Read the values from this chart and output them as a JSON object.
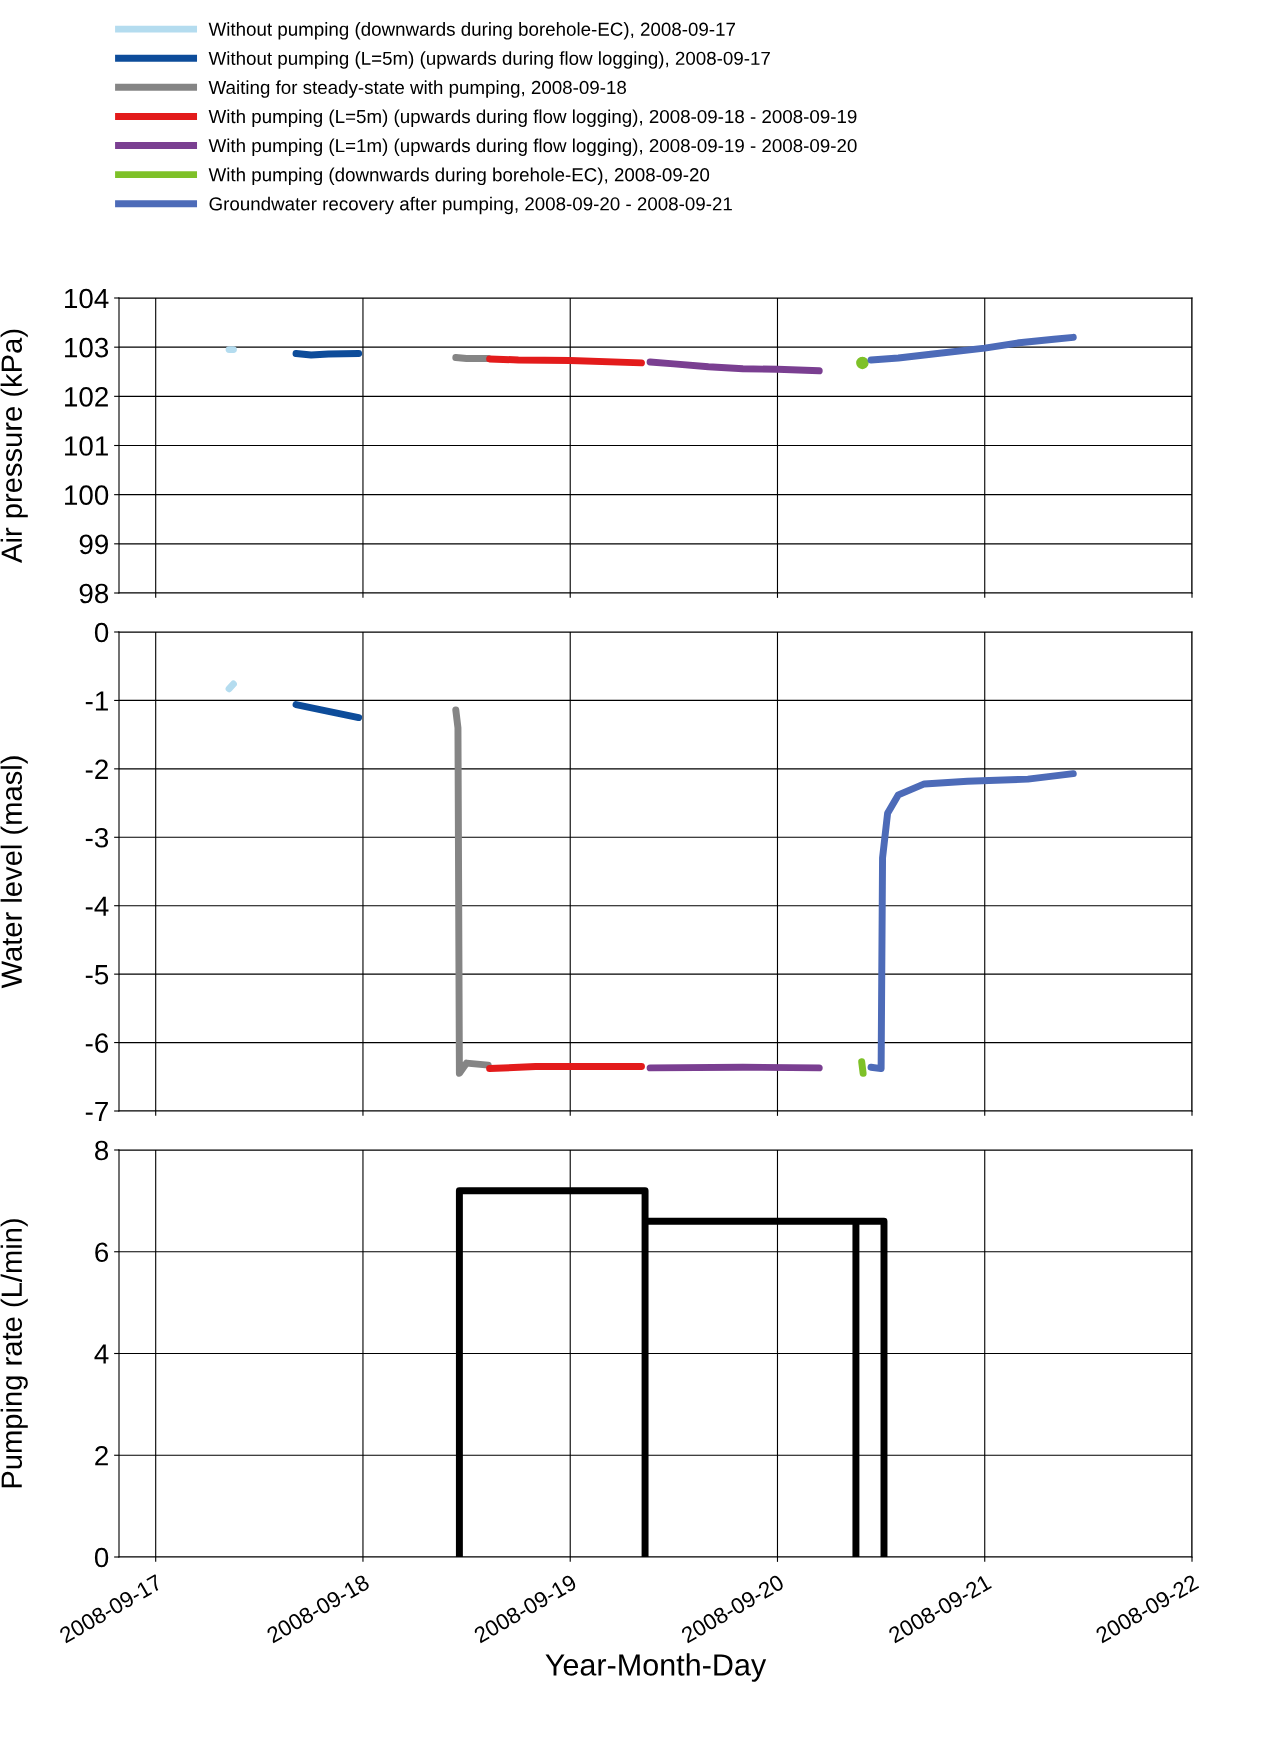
{
  "chart_data": [
    {
      "type": "line",
      "ylabel": "Air pressure (kPa)",
      "xlim": [
        "2008-09-16T19:45",
        "2008-09-22"
      ],
      "xticks": [
        "2008-09-17",
        "2008-09-18",
        "2008-09-19",
        "2008-09-20",
        "2008-09-21",
        "2008-09-22"
      ],
      "ylim": [
        98,
        104
      ],
      "yticks": [
        98,
        99,
        100,
        101,
        102,
        103,
        104
      ],
      "grid": true,
      "tick_labels": "y",
      "legend": "top",
      "marker": "none",
      "line_style": "solid",
      "series": [
        {
          "name": "Without pumping (downwards during borehole-EC), 2008-09-17",
          "color": "#b4dcef",
          "x": [
            "2008-09-17T08:30",
            "2008-09-17T09:00"
          ],
          "values": [
            102.95,
            102.95
          ]
        },
        {
          "name": "Without pumping (L=5m) (upwards during flow logging), 2008-09-17",
          "color": "#0d4c9a",
          "x": [
            "2008-09-17T16:15",
            "2008-09-17T18:00",
            "2008-09-17T20:00",
            "2008-09-17T23:30"
          ],
          "values": [
            102.87,
            102.84,
            102.86,
            102.87
          ]
        },
        {
          "name": "Waiting for steady-state with pumping, 2008-09-18",
          "color": "#858585",
          "x": [
            "2008-09-18T10:45",
            "2008-09-18T12:00",
            "2008-09-18T14:30"
          ],
          "values": [
            102.79,
            102.77,
            102.77
          ]
        },
        {
          "name": "With pumping (L=5m) (upwards during flow logging), 2008-09-18 - 2008-09-19",
          "color": "#e31b1b",
          "x": [
            "2008-09-18T14:40",
            "2008-09-18T18:00",
            "2008-09-19T00:00",
            "2008-09-19T08:15"
          ],
          "values": [
            102.76,
            102.74,
            102.73,
            102.68
          ]
        },
        {
          "name": "With pumping (L=1m) (upwards during flow logging), 2008-09-19 - 2008-09-20",
          "color": "#7a3f91",
          "x": [
            "2008-09-19T09:15",
            "2008-09-19T12:00",
            "2008-09-19T16:00",
            "2008-09-19T20:00",
            "2008-09-20T00:00",
            "2008-09-20T04:50"
          ],
          "values": [
            102.7,
            102.66,
            102.6,
            102.56,
            102.55,
            102.52
          ]
        },
        {
          "name": "With pumping (downwards during borehole-EC), 2008-09-20",
          "color": "#7ec128",
          "type": "scatter",
          "marker": "circle",
          "x": [
            "2008-09-20T09:50"
          ],
          "values": [
            102.68
          ]
        },
        {
          "name": "Groundwater recovery after pumping, 2008-09-20 - 2008-09-21",
          "color": "#4d6bb8",
          "x": [
            "2008-09-20T10:50",
            "2008-09-20T14:00",
            "2008-09-20T18:00",
            "2008-09-21T00:00",
            "2008-09-21T04:00",
            "2008-09-21T08:00",
            "2008-09-21T10:15"
          ],
          "values": [
            102.74,
            102.78,
            102.86,
            102.98,
            103.09,
            103.16,
            103.2
          ]
        }
      ]
    },
    {
      "type": "line",
      "ylabel": "Water level (masl)",
      "xlim": [
        "2008-09-16T19:45",
        "2008-09-22"
      ],
      "xticks": [
        "2008-09-17",
        "2008-09-18",
        "2008-09-19",
        "2008-09-20",
        "2008-09-21",
        "2008-09-22"
      ],
      "ylim": [
        -7,
        0
      ],
      "yticks": [
        -7,
        -6,
        -5,
        -4,
        -3,
        -2,
        -1,
        0
      ],
      "grid": true,
      "tick_labels": "y",
      "marker": "none",
      "line_style": "solid",
      "series": [
        {
          "color": "#b4dcef",
          "x": [
            "2008-09-17T08:30",
            "2008-09-17T09:00"
          ],
          "values": [
            -0.83,
            -0.76
          ]
        },
        {
          "color": "#0d4c9a",
          "x": [
            "2008-09-17T16:15",
            "2008-09-17T20:00",
            "2008-09-17T23:30"
          ],
          "values": [
            -1.06,
            -1.16,
            -1.25
          ]
        },
        {
          "color": "#858585",
          "x": [
            "2008-09-18T10:45",
            "2008-09-18T11:00",
            "2008-09-18T11:10",
            "2008-09-18T12:00",
            "2008-09-18T14:30"
          ],
          "values": [
            -1.14,
            -1.4,
            -6.45,
            -6.3,
            -6.33
          ]
        },
        {
          "color": "#e31b1b",
          "x": [
            "2008-09-18T14:40",
            "2008-09-18T20:00",
            "2008-09-19T08:15"
          ],
          "values": [
            -6.38,
            -6.35,
            -6.35
          ]
        },
        {
          "color": "#7a3f91",
          "x": [
            "2008-09-19T09:15",
            "2008-09-19T20:00",
            "2008-09-20T04:50"
          ],
          "values": [
            -6.37,
            -6.36,
            -6.37
          ]
        },
        {
          "color": "#7ec128",
          "x": [
            "2008-09-20T09:45",
            "2008-09-20T09:55"
          ],
          "values": [
            -6.28,
            -6.45
          ]
        },
        {
          "color": "#4d6bb8",
          "x": [
            "2008-09-20T10:50",
            "2008-09-20T12:00",
            "2008-09-20T12:10",
            "2008-09-20T12:45",
            "2008-09-20T14:00",
            "2008-09-20T17:00",
            "2008-09-20T22:00",
            "2008-09-21T05:00",
            "2008-09-21T10:15"
          ],
          "values": [
            -6.36,
            -6.38,
            -3.3,
            -2.65,
            -2.38,
            -2.22,
            -2.18,
            -2.15,
            -2.07
          ]
        }
      ]
    },
    {
      "type": "line",
      "ylabel": "Pumping rate (L/min)",
      "xlabel": "Year-Month-Day",
      "xlim": [
        "2008-09-16T19:45",
        "2008-09-22"
      ],
      "xticks": [
        "2008-09-17",
        "2008-09-18",
        "2008-09-19",
        "2008-09-20",
        "2008-09-21",
        "2008-09-22"
      ],
      "ylim": [
        0,
        8
      ],
      "yticks": [
        0,
        2,
        4,
        6,
        8
      ],
      "grid": true,
      "marker": "none",
      "line_style": "solid",
      "series": [
        {
          "color": "#000000",
          "x": [
            "2008-09-18T11:10",
            "2008-09-18T11:10",
            "2008-09-19T08:40",
            "2008-09-19T08:40",
            "2008-09-19T08:40",
            "2008-09-20T09:05",
            "2008-09-20T09:05",
            "2008-09-20T09:05",
            "2008-09-20T12:20",
            "2008-09-20T12:20"
          ],
          "values": [
            0,
            7.2,
            7.2,
            0,
            6.6,
            6.6,
            0,
            6.6,
            6.6,
            0
          ]
        }
      ]
    }
  ]
}
